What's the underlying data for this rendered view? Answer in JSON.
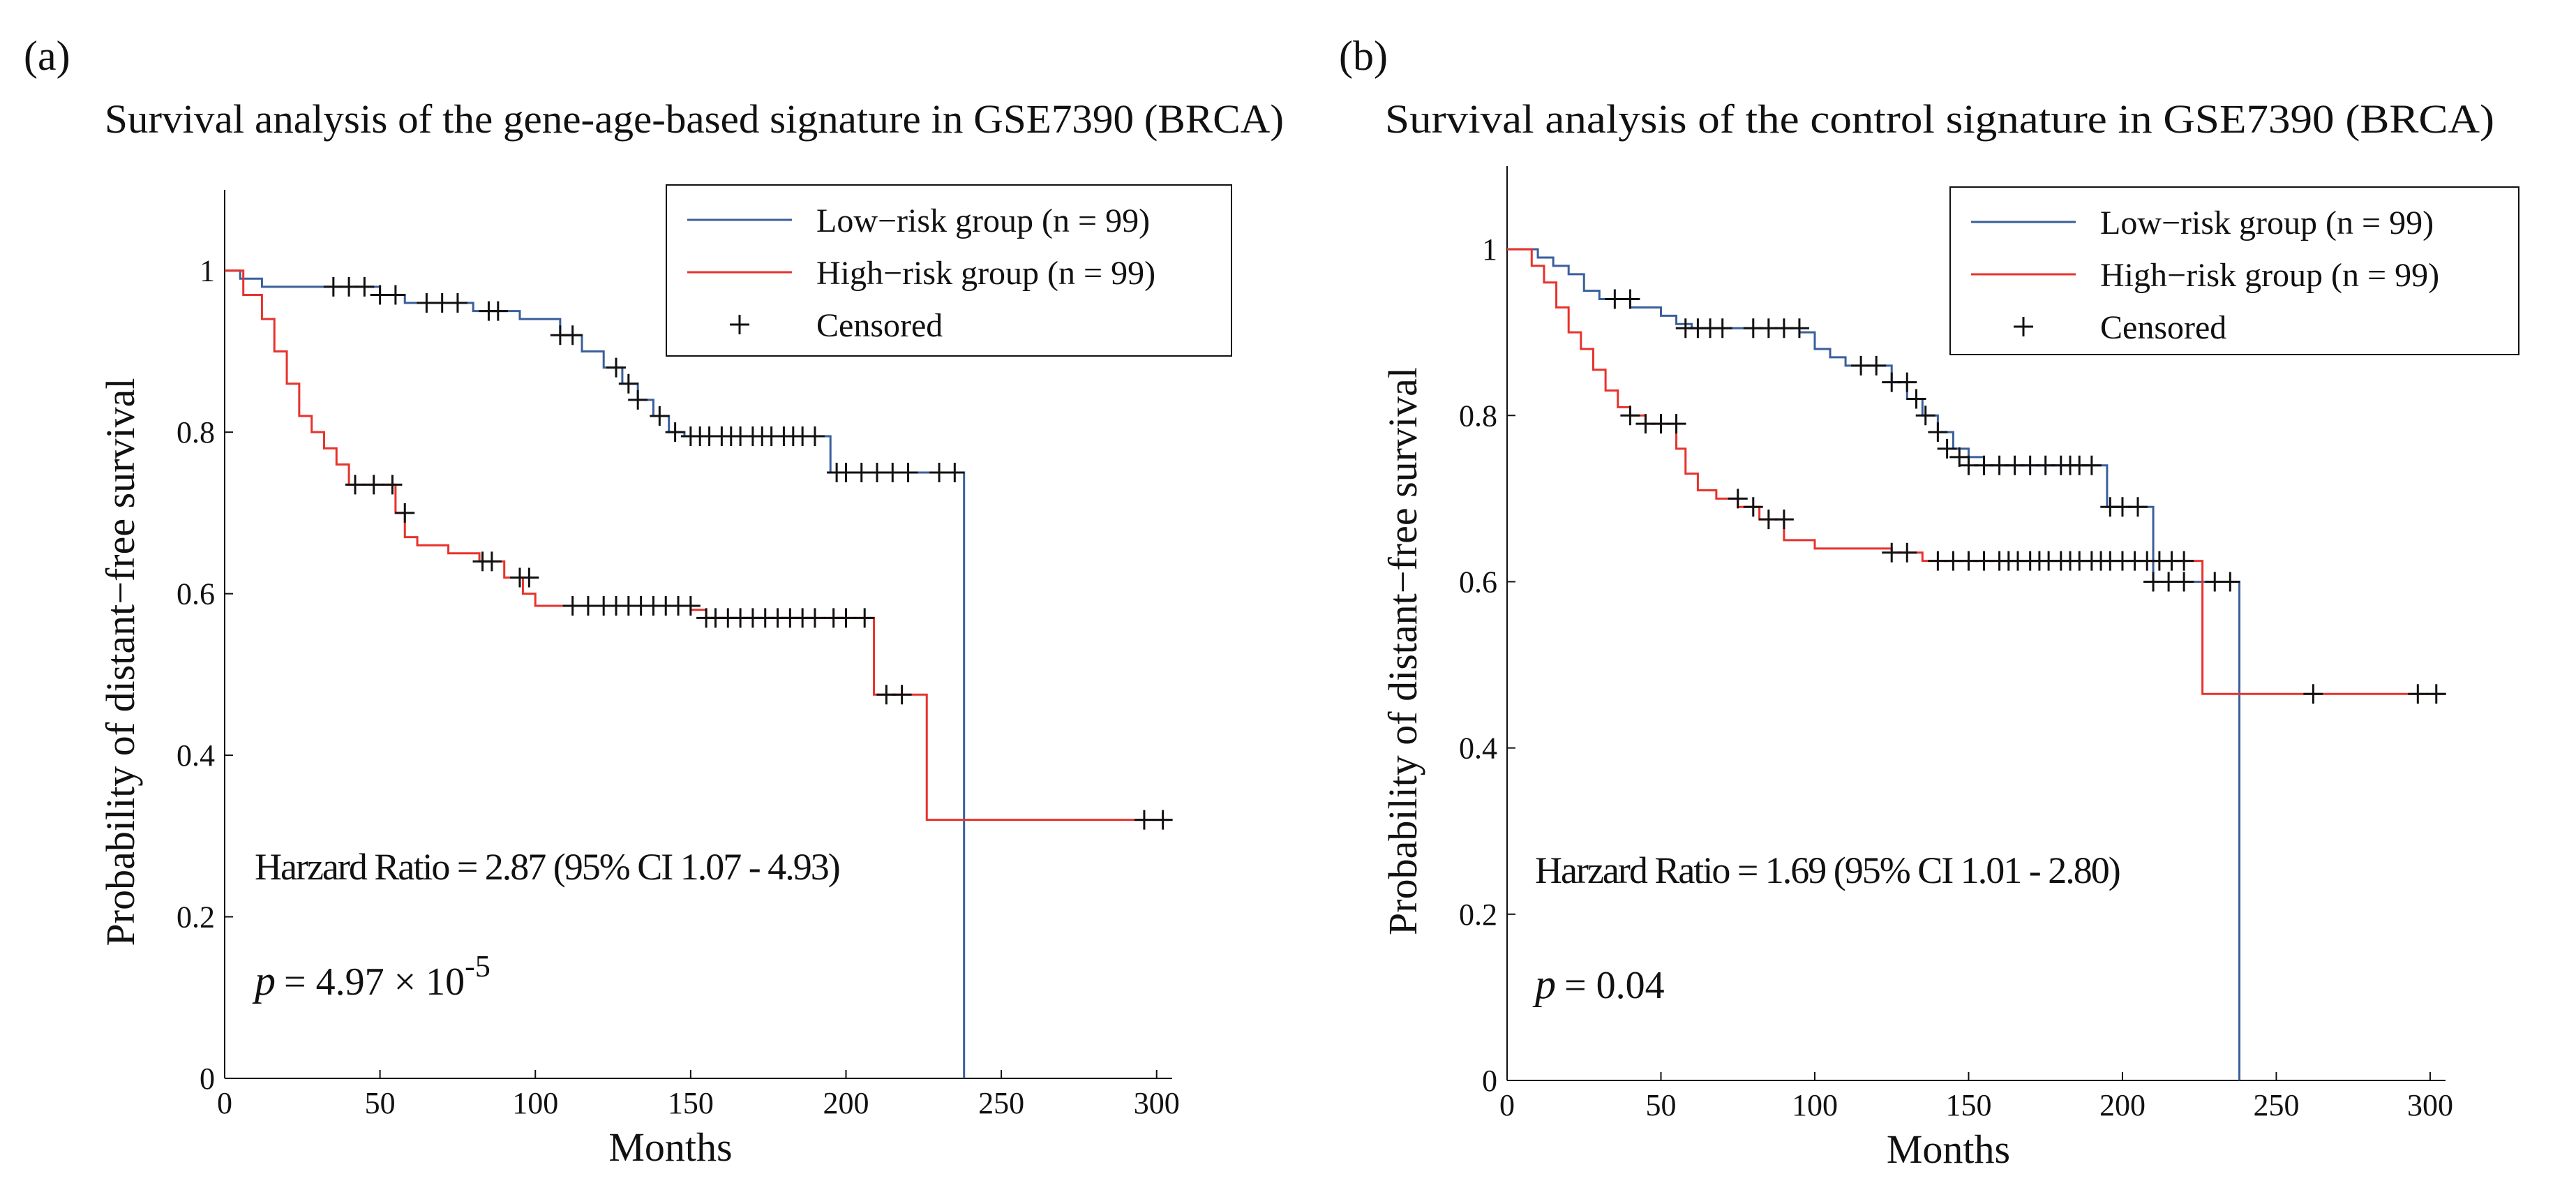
{
  "chart_data": [
    {
      "type": "line",
      "panel_label": "(a)",
      "title": "Survival analysis of the gene-age-based signature in GSE7390 (BRCA)",
      "xlabel": "Months",
      "ylabel": "Probability of distant−free survival",
      "xlim": [
        0,
        305
      ],
      "ylim": [
        0,
        1.1
      ],
      "xticks": [
        0,
        50,
        100,
        150,
        200,
        250,
        300
      ],
      "yticks": [
        0,
        0.2,
        0.4,
        0.6,
        0.8,
        1
      ],
      "xtick_labels": [
        "0",
        "50",
        "100",
        "150",
        "200",
        "250",
        "300"
      ],
      "ytick_labels": [
        "0",
        "0.2",
        "0.4",
        "0.6",
        "0.8",
        "1"
      ],
      "legend": {
        "location": "top-right",
        "low_risk": "Low−risk group (n = 99)",
        "high_risk": "High−risk group (n = 99)",
        "censored": "Censored"
      },
      "annotation_hr": "Harzard Ratio = 2.87 (95% CI 1.07 - 4.93)",
      "annotation_p_symbol": "p",
      "annotation_p_value": "=  4.97 × 10",
      "annotation_p_exponent": "-5",
      "series": [
        {
          "name": "Low−risk group (n = 99)",
          "color": "#3a5f9c",
          "x": [
            0,
            5,
            12,
            22,
            35,
            50,
            58,
            68,
            80,
            95,
            108,
            115,
            122,
            128,
            133,
            138,
            143,
            148,
            195,
            238,
            238
          ],
          "y": [
            1,
            0.99,
            0.98,
            0.98,
            0.98,
            0.97,
            0.96,
            0.96,
            0.95,
            0.94,
            0.92,
            0.9,
            0.88,
            0.86,
            0.84,
            0.82,
            0.8,
            0.795,
            0.75,
            0.75,
            0
          ],
          "censored_x": [
            35,
            40,
            45,
            50,
            55,
            65,
            70,
            75,
            85,
            88,
            108,
            112,
            126,
            130,
            133,
            140,
            145,
            150,
            153,
            156,
            160,
            163,
            166,
            170,
            173,
            176,
            180,
            183,
            186,
            190,
            197,
            200,
            205,
            210,
            215,
            220,
            230,
            235
          ],
          "censored_y": [
            0.98,
            0.98,
            0.98,
            0.97,
            0.97,
            0.96,
            0.96,
            0.96,
            0.95,
            0.95,
            0.92,
            0.92,
            0.88,
            0.86,
            0.84,
            0.82,
            0.8,
            0.795,
            0.795,
            0.795,
            0.795,
            0.795,
            0.795,
            0.795,
            0.795,
            0.795,
            0.795,
            0.795,
            0.795,
            0.795,
            0.75,
            0.75,
            0.75,
            0.75,
            0.75,
            0.75,
            0.75,
            0.75
          ]
        },
        {
          "name": "High−risk group (n = 99)",
          "color": "#e8322c",
          "x": [
            0,
            6,
            12,
            16,
            20,
            24,
            28,
            32,
            36,
            40,
            55,
            58,
            62,
            72,
            82,
            90,
            96,
            100,
            150,
            155,
            207,
            209,
            224,
            226,
            305
          ],
          "y": [
            1,
            0.97,
            0.94,
            0.9,
            0.86,
            0.82,
            0.8,
            0.78,
            0.76,
            0.735,
            0.7,
            0.67,
            0.66,
            0.65,
            0.64,
            0.62,
            0.6,
            0.585,
            0.58,
            0.57,
            0.57,
            0.475,
            0.475,
            0.32,
            0.32
          ],
          "censored_x": [
            42,
            48,
            54,
            58,
            83,
            86,
            95,
            98,
            112,
            117,
            122,
            126,
            130,
            134,
            138,
            142,
            146,
            150,
            155,
            158,
            162,
            166,
            170,
            174,
            178,
            182,
            186,
            190,
            196,
            200,
            206,
            213,
            218,
            296,
            302
          ],
          "censored_y": [
            0.735,
            0.735,
            0.735,
            0.7,
            0.64,
            0.64,
            0.62,
            0.62,
            0.585,
            0.585,
            0.585,
            0.585,
            0.585,
            0.585,
            0.585,
            0.585,
            0.585,
            0.585,
            0.57,
            0.57,
            0.57,
            0.57,
            0.57,
            0.57,
            0.57,
            0.57,
            0.57,
            0.57,
            0.57,
            0.57,
            0.57,
            0.475,
            0.475,
            0.32,
            0.32
          ]
        }
      ]
    },
    {
      "type": "line",
      "panel_label": "(b)",
      "title": "Survival analysis of the control signature in GSE7390 (BRCA)",
      "xlabel": "Months",
      "ylabel": "Probability of distant−free survival",
      "xlim": [
        0,
        305
      ],
      "ylim": [
        0,
        1.1
      ],
      "xticks": [
        0,
        50,
        100,
        150,
        200,
        250,
        300
      ],
      "yticks": [
        0,
        0.2,
        0.4,
        0.6,
        0.8,
        1
      ],
      "xtick_labels": [
        "0",
        "50",
        "100",
        "150",
        "200",
        "250",
        "300"
      ],
      "ytick_labels": [
        "0",
        "0.2",
        "0.4",
        "0.6",
        "0.8",
        "1"
      ],
      "legend": {
        "location": "top-right",
        "low_risk": "Low−risk group (n = 99)",
        "high_risk": "High−risk group (n = 99)",
        "censored": "Censored"
      },
      "annotation_hr": "Harzard Ratio = 1.69  (95% CI 1.01 - 2.80)",
      "annotation_p_symbol": "p",
      "annotation_p_value": "= 0.04",
      "annotation_p_exponent": "",
      "series": [
        {
          "name": "Low−risk group (n = 99)",
          "color": "#3a5f9c",
          "x": [
            0,
            10,
            15,
            20,
            25,
            30,
            40,
            50,
            55,
            60,
            95,
            100,
            105,
            110,
            125,
            130,
            135,
            140,
            145,
            150,
            155,
            193,
            195,
            208,
            210,
            238,
            238
          ],
          "y": [
            1,
            0.99,
            0.98,
            0.97,
            0.95,
            0.94,
            0.93,
            0.92,
            0.91,
            0.905,
            0.9,
            0.88,
            0.87,
            0.86,
            0.84,
            0.82,
            0.8,
            0.78,
            0.76,
            0.75,
            0.74,
            0.74,
            0.69,
            0.69,
            0.6,
            0.6,
            0
          ],
          "censored_x": [
            35,
            40,
            58,
            62,
            66,
            70,
            80,
            85,
            90,
            95,
            115,
            120,
            125,
            130,
            133,
            136,
            140,
            143,
            147,
            150,
            155,
            160,
            165,
            170,
            175,
            180,
            183,
            186,
            190,
            196,
            200,
            205,
            210,
            215,
            220,
            230,
            235
          ],
          "censored_y": [
            0.94,
            0.94,
            0.905,
            0.905,
            0.905,
            0.905,
            0.905,
            0.905,
            0.905,
            0.905,
            0.86,
            0.86,
            0.84,
            0.84,
            0.82,
            0.8,
            0.78,
            0.76,
            0.75,
            0.74,
            0.74,
            0.74,
            0.74,
            0.74,
            0.74,
            0.74,
            0.74,
            0.74,
            0.74,
            0.69,
            0.69,
            0.69,
            0.6,
            0.6,
            0.6,
            0.6,
            0.6
          ]
        },
        {
          "name": "High−risk group (n = 99)",
          "color": "#e8322c",
          "x": [
            0,
            8,
            12,
            16,
            20,
            24,
            28,
            32,
            36,
            40,
            45,
            55,
            58,
            62,
            68,
            75,
            82,
            90,
            100,
            125,
            135,
            225,
            226,
            305
          ],
          "y": [
            1,
            0.98,
            0.96,
            0.93,
            0.9,
            0.88,
            0.855,
            0.83,
            0.81,
            0.8,
            0.79,
            0.76,
            0.73,
            0.71,
            0.7,
            0.69,
            0.675,
            0.65,
            0.64,
            0.635,
            0.625,
            0.625,
            0.465,
            0.465
          ],
          "censored_x": [
            40,
            45,
            50,
            55,
            75,
            80,
            85,
            90,
            125,
            130,
            140,
            145,
            150,
            155,
            160,
            163,
            166,
            170,
            173,
            176,
            180,
            183,
            186,
            190,
            193,
            196,
            200,
            204,
            208,
            212,
            216,
            220,
            262,
            296,
            302
          ],
          "censored_y": [
            0.8,
            0.79,
            0.79,
            0.79,
            0.7,
            0.69,
            0.675,
            0.675,
            0.635,
            0.635,
            0.625,
            0.625,
            0.625,
            0.625,
            0.625,
            0.625,
            0.625,
            0.625,
            0.625,
            0.625,
            0.625,
            0.625,
            0.625,
            0.625,
            0.625,
            0.625,
            0.625,
            0.625,
            0.625,
            0.625,
            0.625,
            0.625,
            0.465,
            0.465,
            0.465
          ]
        }
      ]
    }
  ]
}
